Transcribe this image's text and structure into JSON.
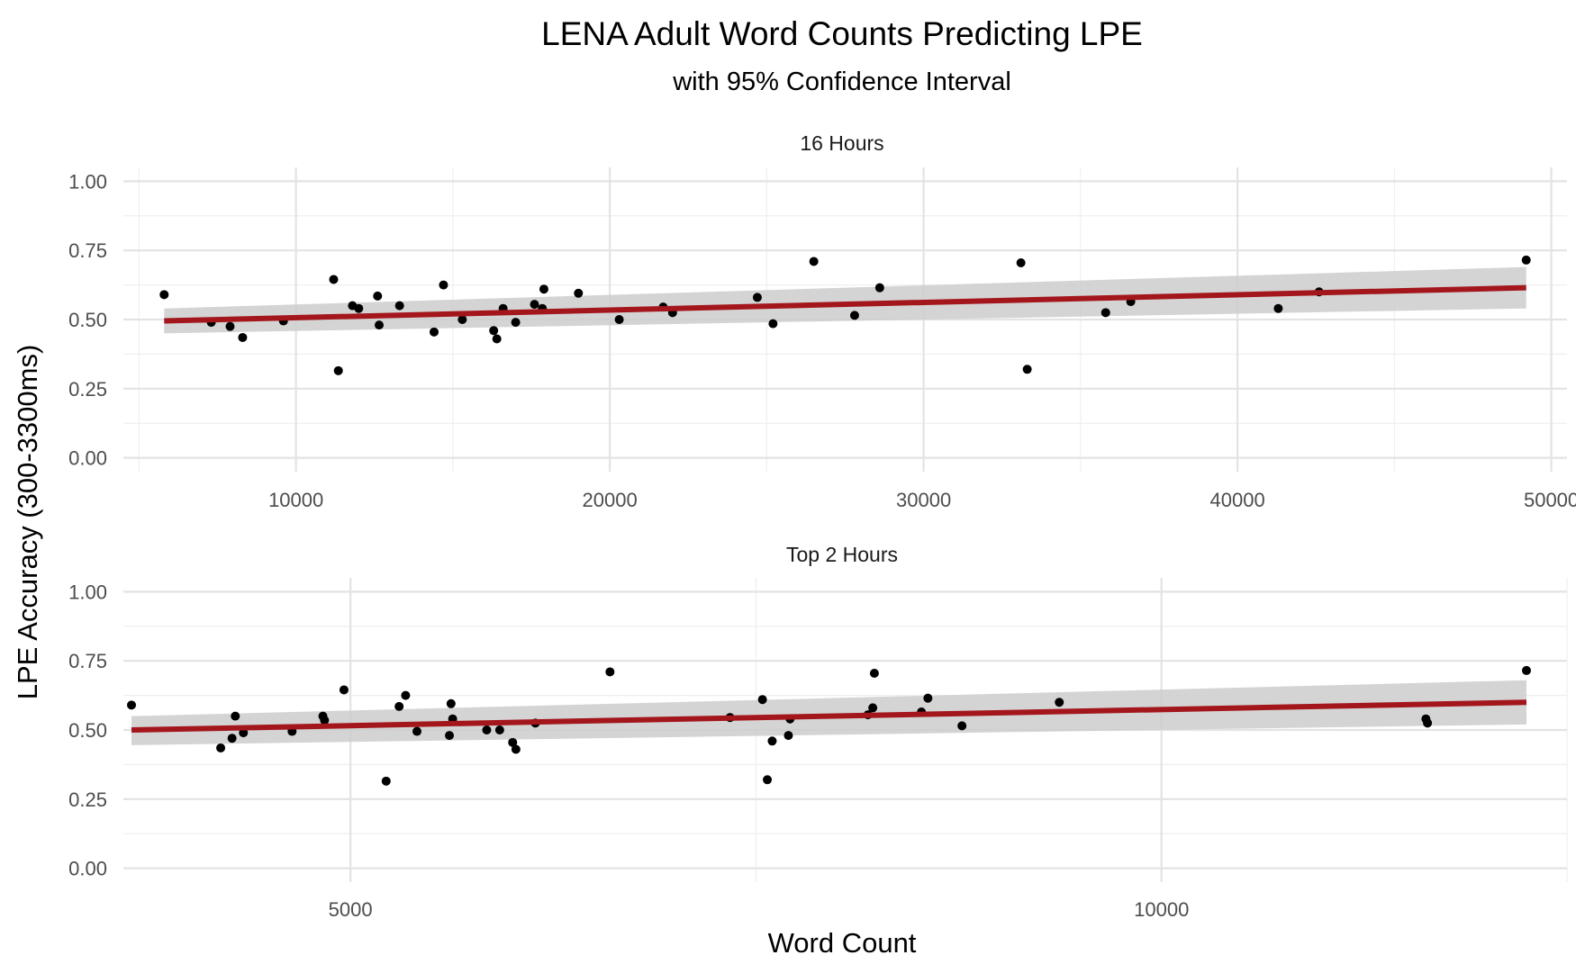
{
  "chart_data": {
    "type": "scatter",
    "title": "LENA Adult Word Counts Predicting LPE",
    "subtitle": "with 95% Confidence Interval",
    "xlabel": "Word Count",
    "ylabel": "LPE Accuracy (300-3300ms)",
    "colors": {
      "fit_line": "#a3161c",
      "ribbon": "#cccccc",
      "point": "#000000",
      "grid": "#e3e3e3"
    },
    "grid": true,
    "legend": "none",
    "panels": [
      {
        "strip": "16 Hours",
        "xlim": [
          4500,
          50500
        ],
        "ylim": [
          -0.05,
          1.05
        ],
        "x_ticks": [
          10000,
          20000,
          30000,
          40000,
          50000
        ],
        "x_tick_labels": [
          "10000",
          "20000",
          "30000",
          "40000",
          "50000"
        ],
        "y_ticks": [
          0.0,
          0.25,
          0.5,
          0.75,
          1.0
        ],
        "y_tick_labels": [
          "0.00",
          "0.25",
          "0.50",
          "0.75",
          "1.00"
        ],
        "fit": {
          "x": [
            5800,
            49200
          ],
          "y": [
            0.495,
            0.615
          ],
          "lower": [
            0.45,
            0.54
          ],
          "upper": [
            0.54,
            0.69
          ]
        },
        "points": [
          [
            5800,
            0.59
          ],
          [
            7300,
            0.49
          ],
          [
            7900,
            0.475
          ],
          [
            8300,
            0.435
          ],
          [
            9600,
            0.495
          ],
          [
            11200,
            0.645
          ],
          [
            11350,
            0.315
          ],
          [
            11800,
            0.55
          ],
          [
            12000,
            0.54
          ],
          [
            12600,
            0.585
          ],
          [
            12650,
            0.48
          ],
          [
            13300,
            0.55
          ],
          [
            14400,
            0.455
          ],
          [
            14700,
            0.625
          ],
          [
            15300,
            0.5
          ],
          [
            16300,
            0.46
          ],
          [
            16400,
            0.43
          ],
          [
            16600,
            0.54
          ],
          [
            17000,
            0.49
          ],
          [
            17600,
            0.555
          ],
          [
            17900,
            0.61
          ],
          [
            17850,
            0.54
          ],
          [
            19000,
            0.595
          ],
          [
            20300,
            0.5
          ],
          [
            21700,
            0.545
          ],
          [
            22000,
            0.525
          ],
          [
            24700,
            0.58
          ],
          [
            25200,
            0.485
          ],
          [
            26500,
            0.71
          ],
          [
            27800,
            0.515
          ],
          [
            28600,
            0.615
          ],
          [
            33100,
            0.705
          ],
          [
            33300,
            0.32
          ],
          [
            35800,
            0.525
          ],
          [
            36600,
            0.565
          ],
          [
            41300,
            0.54
          ],
          [
            42600,
            0.6
          ],
          [
            49200,
            0.715
          ]
        ]
      },
      {
        "strip": "Top 2 Hours",
        "xlim": [
          3600,
          12500
        ],
        "ylim": [
          -0.05,
          1.05
        ],
        "x_ticks": [
          5000,
          10000
        ],
        "x_tick_labels": [
          "5000",
          "10000"
        ],
        "y_ticks": [
          0.0,
          0.25,
          0.5,
          0.75,
          1.0
        ],
        "y_tick_labels": [
          "0.00",
          "0.25",
          "0.50",
          "0.75",
          "1.00"
        ],
        "fit": {
          "x": [
            3650,
            12250
          ],
          "y": [
            0.5,
            0.6
          ],
          "lower": [
            0.445,
            0.52
          ],
          "upper": [
            0.55,
            0.68
          ]
        },
        "points": [
          [
            3650,
            0.59
          ],
          [
            4200,
            0.435
          ],
          [
            4270,
            0.47
          ],
          [
            4290,
            0.55
          ],
          [
            4340,
            0.49
          ],
          [
            4640,
            0.495
          ],
          [
            4830,
            0.55
          ],
          [
            4840,
            0.535
          ],
          [
            4960,
            0.645
          ],
          [
            5220,
            0.315
          ],
          [
            5300,
            0.585
          ],
          [
            5340,
            0.625
          ],
          [
            5410,
            0.495
          ],
          [
            5610,
            0.48
          ],
          [
            5620,
            0.595
          ],
          [
            5630,
            0.54
          ],
          [
            5840,
            0.5
          ],
          [
            5920,
            0.5
          ],
          [
            6000,
            0.455
          ],
          [
            6020,
            0.43
          ],
          [
            6140,
            0.525
          ],
          [
            6600,
            0.71
          ],
          [
            7340,
            0.545
          ],
          [
            7540,
            0.61
          ],
          [
            7570,
            0.32
          ],
          [
            7600,
            0.46
          ],
          [
            7700,
            0.48
          ],
          [
            7710,
            0.54
          ],
          [
            8190,
            0.555
          ],
          [
            8220,
            0.58
          ],
          [
            8230,
            0.705
          ],
          [
            8520,
            0.565
          ],
          [
            8560,
            0.615
          ],
          [
            8770,
            0.515
          ],
          [
            9370,
            0.6
          ],
          [
            11630,
            0.54
          ],
          [
            11640,
            0.525
          ],
          [
            12250,
            0.715
          ]
        ]
      }
    ]
  }
}
